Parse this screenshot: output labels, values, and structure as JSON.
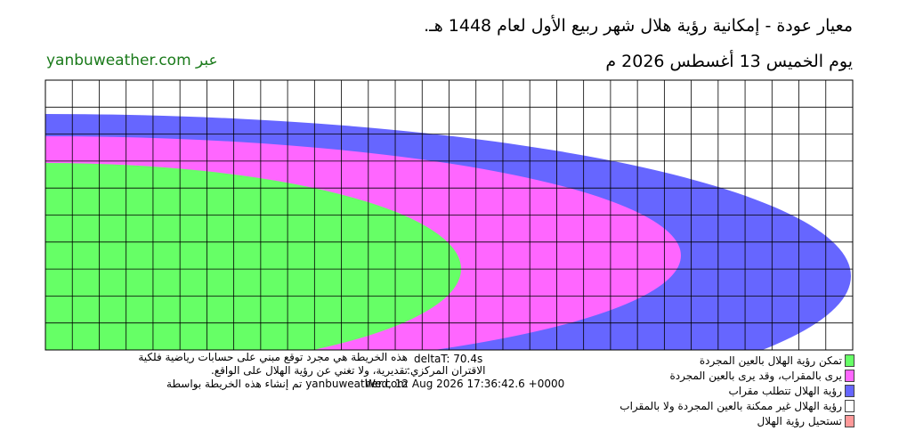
{
  "header": {
    "title": "معيار عودة - إمكانية رؤية هلال شهر ربيع الأول لعام 1448 هـ.",
    "date": "يوم الخميس 13 أغسطس 2026 م",
    "source": "yanbuweather.com عبر"
  },
  "footer": {
    "disclaimer": [
      "هذه الخريطة هي مجرد توقع مبني على حسابات رياضية فلكية",
      "تقديرية، ولا تغني عن رؤية الهلال على الواقع.",
      "yanbuweather.com تم إنشاء هذه الخريطة بواسطة"
    ],
    "delta_t": "deltaT: 70.4s",
    "conjunction_label": "الاقتران المركزي:",
    "conjunction_time": "Wed, 12 Aug 2026 17:36:42.6 +0000"
  },
  "legend": [
    {
      "label": "تمكن رؤية الهلال بالعين المجردة",
      "color": "#66ff66"
    },
    {
      "label": "يرى بالمقراب، وقد يرى بالعين المجردة",
      "color": "#ff66ff"
    },
    {
      "label": "رؤية الهلال تتطلب مقراب",
      "color": "#6666ff"
    },
    {
      "label": "رؤية الهلال غير ممكنة بالعين المجردة ولا بالمقراب",
      "color": "#ffffff"
    },
    {
      "label": "تستحيل رؤية الهلال",
      "color": "#ff9999"
    }
  ]
}
